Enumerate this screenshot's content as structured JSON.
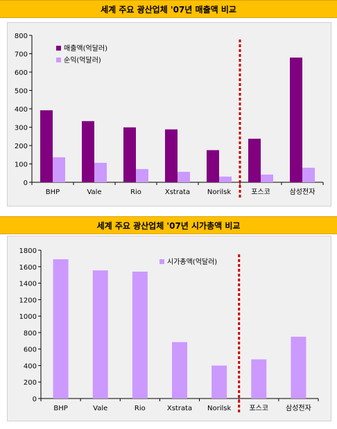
{
  "chart_data": [
    {
      "type": "bar",
      "title": "세계 주요 광산업체 '07년 매출액 비교",
      "categories": [
        "BHP",
        "Vale",
        "Rio",
        "Xstrata",
        "Norilsk",
        "포스코",
        "삼성전자"
      ],
      "series": [
        {
          "name": "매출액(억달러)",
          "values": [
            392,
            333,
            299,
            288,
            175,
            237,
            679
          ]
        },
        {
          "name": "순익(억달러)",
          "values": [
            136,
            106,
            72,
            57,
            31,
            42,
            79
          ]
        }
      ],
      "ylim": [
        0,
        800
      ],
      "yticks": [
        0,
        100,
        200,
        300,
        400,
        500,
        600,
        700,
        800
      ],
      "legend_position": "top-left",
      "divider_after_category": 4,
      "colors": [
        "#800080",
        "#cc99ff"
      ]
    },
    {
      "type": "bar",
      "title": "세계 주요 광산업체 '07년 시가총액 비교",
      "categories": [
        "BHP",
        "Vale",
        "Rio",
        "Xstrata",
        "Norilsk",
        "포스코",
        "삼성전자"
      ],
      "series": [
        {
          "name": "시가총액(억달러)",
          "values": [
            1690,
            1555,
            1540,
            685,
            400,
            475,
            750
          ]
        }
      ],
      "ylim": [
        0,
        1800
      ],
      "yticks": [
        0,
        200,
        400,
        600,
        800,
        1000,
        1200,
        1400,
        1600,
        1800
      ],
      "legend_position": "top-center",
      "divider_after_category": 4,
      "colors": [
        "#cc99ff"
      ]
    }
  ],
  "divider_color": "#cc0000"
}
